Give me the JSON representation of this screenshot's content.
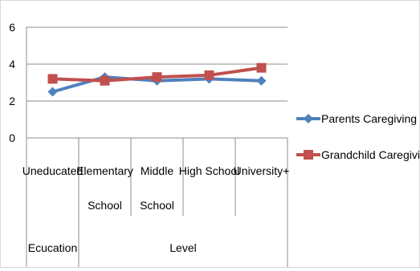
{
  "chart_data": {
    "type": "line",
    "title": "",
    "xlabel": "",
    "ylabel": "",
    "ylim": [
      0,
      6
    ],
    "yticks": [
      0,
      2,
      4,
      6
    ],
    "grid": true,
    "legend_position": "right",
    "categories": [
      [
        "Uneducated"
      ],
      [
        "Elementary",
        "School"
      ],
      [
        "Middle",
        "School"
      ],
      [
        "High School"
      ],
      [
        "University+"
      ]
    ],
    "group_labels": [
      {
        "label": "Ecucation",
        "span": [
          0,
          0
        ]
      },
      {
        "label": "Level",
        "span": [
          1,
          4
        ]
      }
    ],
    "series": [
      {
        "name": "Parents Caregiving",
        "color": "#4f81bd",
        "marker": "diamond",
        "values": [
          2.5,
          3.3,
          3.1,
          3.2,
          3.1
        ]
      },
      {
        "name": "Grandchild Caregiving",
        "color": "#c0504d",
        "marker": "square",
        "values": [
          3.2,
          3.1,
          3.3,
          3.4,
          3.8
        ]
      }
    ]
  }
}
